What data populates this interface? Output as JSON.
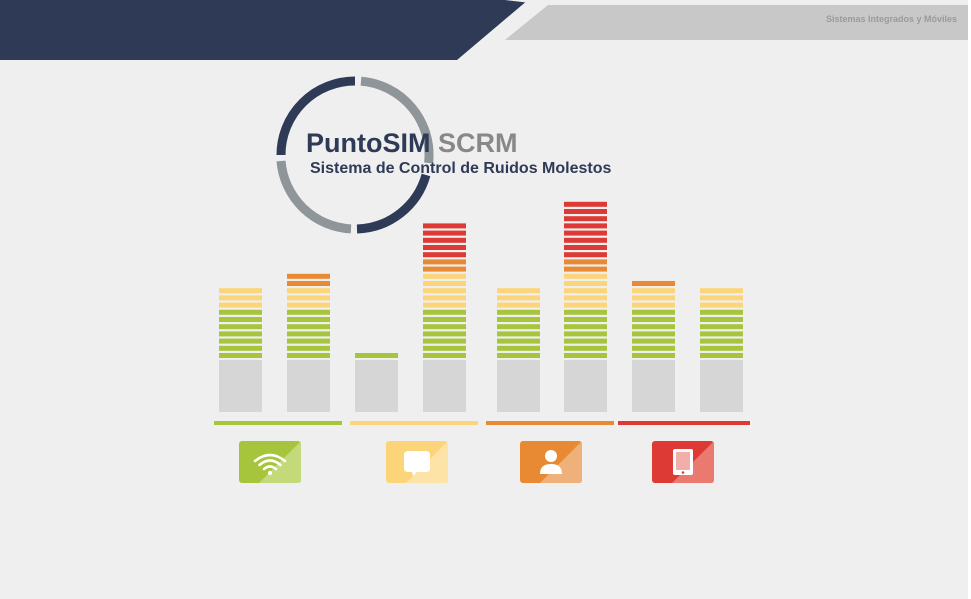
{
  "header": {
    "brand_tagline": "Sistemas Integrados y Móviles",
    "colors": {
      "navy": "#2e3a56",
      "gray": "#c8c8c8"
    }
  },
  "logo": {
    "title_part1": "PuntoSIM",
    "title_part2": "SCRM",
    "subtitle": "Sistema de Control de Ruidos Molestos"
  },
  "meter": {
    "segment_colors": {
      "green": "#a7c53c",
      "yellow": "#fcd47a",
      "orange": "#e88a33",
      "red": "#dd3a35",
      "base": "#d6d6d6"
    },
    "columns": [
      {
        "green": 7,
        "yellow": 3,
        "orange": 0,
        "red": 0
      },
      {
        "green": 7,
        "yellow": 3,
        "orange": 2,
        "red": 0
      },
      {
        "green": 1,
        "yellow": 0,
        "orange": 0,
        "red": 0
      },
      {
        "green": 7,
        "yellow": 5,
        "orange": 2,
        "red": 5
      },
      {
        "green": 7,
        "yellow": 3,
        "orange": 0,
        "red": 0
      },
      {
        "green": 7,
        "yellow": 5,
        "orange": 2,
        "red": 8
      },
      {
        "green": 7,
        "yellow": 3,
        "orange": 1,
        "red": 0
      },
      {
        "green": 7,
        "yellow": 3,
        "orange": 0,
        "red": 0
      }
    ]
  },
  "categories": [
    {
      "icon": "wifi-icon",
      "color": "#a7c53c",
      "light": "#c4d97a"
    },
    {
      "icon": "speech-bubble-icon",
      "color": "#fcd47a",
      "light": "#fde3a6"
    },
    {
      "icon": "user-icon",
      "color": "#e88a33",
      "light": "#f0b07a"
    },
    {
      "icon": "tablet-icon",
      "color": "#dd3a35",
      "light": "#ea7a6f"
    }
  ]
}
